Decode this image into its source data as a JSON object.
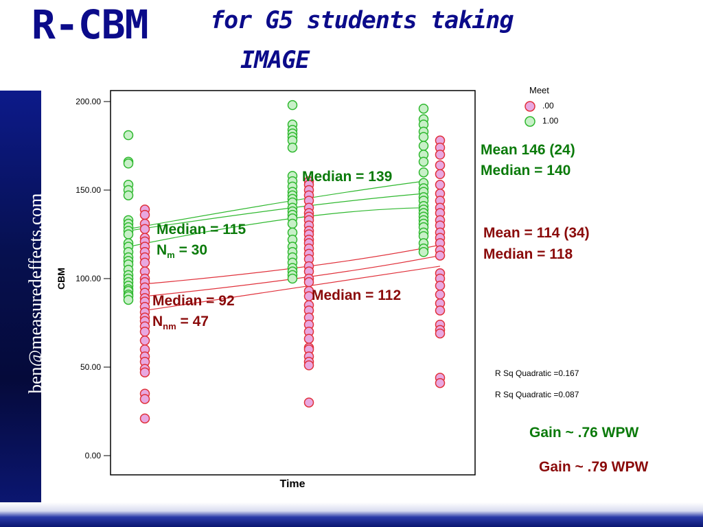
{
  "slide": {
    "title_main": "R-CBM",
    "title_sub_line1": "for G5 students taking",
    "title_sub_line2": "IMAGE",
    "side_text": "ben@measuredeffects.com"
  },
  "colors": {
    "title": "#0b0b8a",
    "meet_yes": "#2eb82e",
    "meet_no": "#e0303a",
    "annotation_green": "#0a7a0a",
    "annotation_red": "#8a0a0a"
  },
  "annotations": {
    "median_139": "Median = 139",
    "median_115": "Median = 115",
    "n_m_prefix": "N",
    "n_m_sub": "m",
    "n_m_value": " = 30",
    "median_92": "Median = 92",
    "n_nm_prefix": "N",
    "n_nm_sub": "nm",
    "n_nm_value": " = 47",
    "median_112": "Median = 112",
    "mean_146": "Mean 146 (24)",
    "median_140": "Median = 140",
    "mean_114": "Mean = 114 (34)",
    "median_118": "Median = 118",
    "rsq_1": "R Sq Quadratic =0.167",
    "rsq_2": "R Sq Quadratic =0.087",
    "gain_green": "Gain ~ .76 WPW",
    "gain_red": "Gain ~ .79 WPW"
  },
  "chart_data": {
    "type": "scatter",
    "xlabel": "Time",
    "ylabel": "CBM",
    "ylim": [
      0,
      200
    ],
    "yticks": [
      "0.00",
      "50.00",
      "100.00",
      "150.00",
      "200.00"
    ],
    "grid": false,
    "legend": {
      "title": "Meet",
      "placement": "top-right",
      "entries": [
        {
          "label": ".00",
          "color": "#e0303a",
          "fill": "#e8a8e0"
        },
        {
          "label": "1.00",
          "color": "#2eb82e",
          "fill": "#c8f0c8"
        }
      ]
    },
    "series": [
      {
        "meet": "1.00",
        "color": "#2eb82e",
        "fill": "#c8f0c8",
        "points": [
          {
            "x": 1,
            "y": [
              181,
              166,
              165,
              153,
              150,
              147,
              133,
              131,
              129,
              127,
              125,
              120,
              118,
              115,
              112,
              110,
              108,
              105,
              102,
              100,
              98,
              96,
              94,
              93,
              91,
              90,
              88
            ]
          },
          {
            "x": 2,
            "y": [
              198,
              187,
              184,
              182,
              180,
              178,
              174,
              158,
              155,
              152,
              149,
              147,
              145,
              143,
              140,
              138,
              136,
              134,
              131,
              126,
              122,
              118,
              115,
              112,
              109,
              106,
              104,
              102,
              100
            ]
          },
          {
            "x": 3,
            "y": [
              196,
              190,
              187,
              183,
              180,
              175,
              170,
              166,
              160,
              154,
              151,
              149,
              146,
              144,
              141,
              139,
              137,
              135,
              133,
              131,
              129,
              126,
              124,
              120,
              117,
              115
            ]
          }
        ]
      },
      {
        "meet": ".00",
        "color": "#e0303a",
        "fill": "#e8a8e0",
        "points": [
          {
            "x": 1,
            "y": [
              139,
              136,
              131,
              128,
              123,
              121,
              118,
              115,
              112,
              109,
              104,
              100,
              98,
              95,
              92,
              89,
              87,
              84,
              81,
              78,
              76,
              73,
              70,
              65,
              60,
              56,
              53,
              49,
              47,
              35,
              32,
              21
            ]
          },
          {
            "x": 2,
            "y": [
              155,
              153,
              150,
              147,
              144,
              140,
              137,
              135,
              133,
              130,
              127,
              125,
              122,
              120,
              117,
              114,
              111,
              107,
              104,
              100,
              98,
              93,
              90,
              85,
              82,
              78,
              74,
              70,
              66,
              61,
              60,
              56,
              53,
              51,
              30
            ]
          },
          {
            "x": 3,
            "y": [
              178,
              174,
              170,
              164,
              159,
              153,
              148,
              144,
              140,
              137,
              133,
              130,
              126,
              123,
              120,
              116,
              113,
              103,
              100,
              96,
              91,
              86,
              82,
              74,
              71,
              69,
              44,
              41
            ]
          }
        ]
      }
    ],
    "fit_lines": [
      {
        "meet": "1.00",
        "color": "#2eb82e",
        "x": [
          1,
          2,
          3
        ],
        "y": [
          128,
          144,
          155
        ]
      },
      {
        "meet": "1.00",
        "color": "#2eb82e",
        "x": [
          1,
          2,
          3
        ],
        "y": [
          127,
          140,
          148
        ]
      },
      {
        "meet": "1.00",
        "color": "#2eb82e",
        "x": [
          1,
          2,
          3
        ],
        "y": [
          118,
          134,
          140
        ]
      },
      {
        "meet": ".00",
        "color": "#e0303a",
        "x": [
          1,
          2,
          3
        ],
        "y": [
          97,
          107,
          119
        ]
      },
      {
        "meet": ".00",
        "color": "#e0303a",
        "x": [
          1,
          2,
          3
        ],
        "y": [
          90,
          101,
          113
        ]
      },
      {
        "meet": ".00",
        "color": "#e0303a",
        "x": [
          1,
          2,
          3
        ],
        "y": [
          82,
          96,
          107
        ]
      }
    ]
  }
}
